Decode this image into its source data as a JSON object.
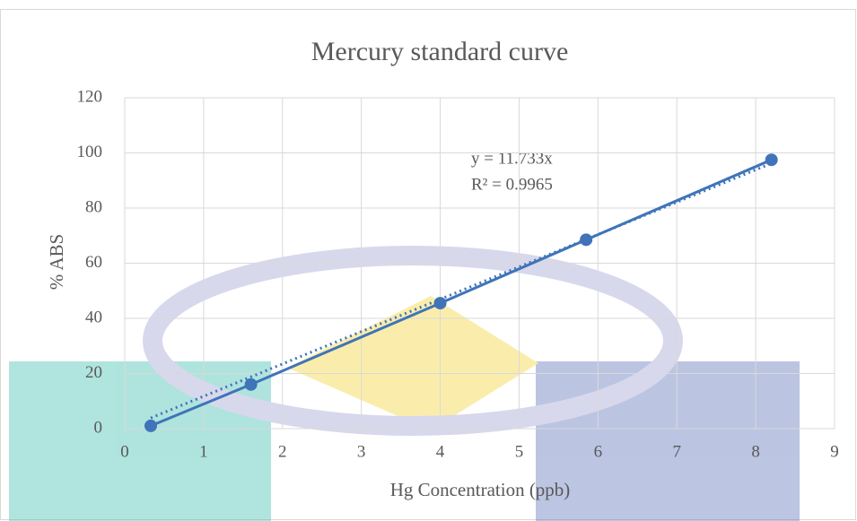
{
  "chart_data": {
    "type": "scatter",
    "title": "Mercury standard curve",
    "x_label": "Hg Concentration (ppb)",
    "y_label": "% ABS",
    "series": [
      {
        "name": "% ABS",
        "color": "#3f74b8",
        "x": [
          0.33,
          1.6,
          4,
          5.85,
          8.2
        ],
        "values": [
          1,
          16,
          45.5,
          68.5,
          97.5
        ]
      }
    ],
    "trendline": {
      "slope": 11.733,
      "equation": "y = 11.733x",
      "r2_label": "R² = 0.9965",
      "color": "#3f74b8"
    },
    "xlim": [
      0,
      9
    ],
    "xticks": [
      0,
      1,
      2,
      3,
      4,
      5,
      6,
      7,
      8,
      9
    ],
    "ylim": [
      0,
      120
    ],
    "yticks": [
      0,
      20,
      40,
      60,
      80,
      100,
      120
    ],
    "grid": true
  }
}
